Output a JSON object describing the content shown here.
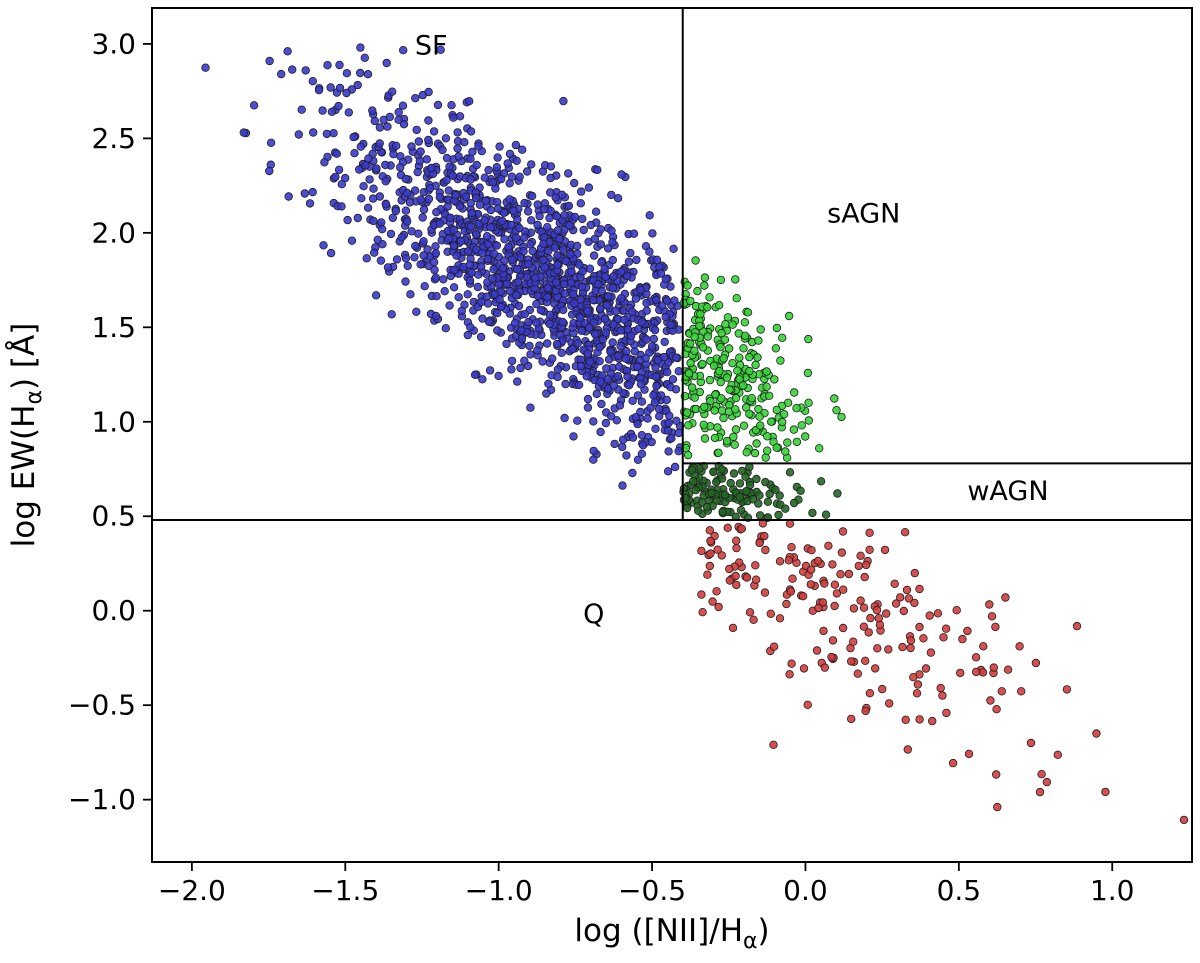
{
  "page": {
    "background": "#ffffff"
  },
  "chart_data": {
    "type": "scatter",
    "title": "",
    "description": "WHAN diagnostic diagram: equivalent width of H-alpha vs [NII]/H-alpha line ratio, with galaxies classified as SF, sAGN, wAGN and Q",
    "xlabel_parts": [
      [
        "t",
        "log ([NII]/H"
      ],
      [
        "sub",
        "α"
      ],
      [
        "t",
        ")"
      ]
    ],
    "ylabel_parts": [
      [
        "t",
        "log EW(H"
      ],
      [
        "sub",
        "α"
      ],
      [
        "t",
        ") [Å]"
      ]
    ],
    "xlim": [
      -2.13,
      1.26
    ],
    "ylim": [
      -1.33,
      3.19
    ],
    "grid": false,
    "x_ticks": {
      "values": [
        -2.0,
        -1.5,
        -1.0,
        -0.5,
        0.0,
        0.5,
        1.0
      ],
      "labels": [
        "−2.0",
        "−1.5",
        "−1.0",
        "−0.5",
        "0.0",
        "0.5",
        "1.0"
      ]
    },
    "y_ticks": {
      "values": [
        -1.0,
        -0.5,
        0.0,
        0.5,
        1.0,
        1.5,
        2.0,
        2.5,
        3.0
      ],
      "labels": [
        "−1.0",
        "−0.5",
        "0.0",
        "0.5",
        "1.0",
        "1.5",
        "2.0",
        "2.5",
        "3.0"
      ]
    },
    "boundaries": {
      "nii_cut": -0.4,
      "ew_sagn_cut": 0.78,
      "ew_quiescent_cut": 0.48,
      "line_color": "#000000",
      "line_width": 2
    },
    "region_labels": [
      {
        "text": "SF",
        "x": -1.22,
        "y": 2.99
      },
      {
        "text": "sAGN",
        "x": 0.19,
        "y": 2.1
      },
      {
        "text": "wAGN",
        "x": 0.66,
        "y": 0.63
      },
      {
        "text": "Q",
        "x": -0.69,
        "y": -0.02
      }
    ],
    "style": {
      "marker_radius": 3.8,
      "marker_edge_color": "#202020",
      "marker_edge_width": 0.8,
      "marker_fill_opacity": 0.9,
      "frame_color": "#000000",
      "tick_font_size": 28,
      "axis_label_font_size": 31,
      "region_label_font_size": 27
    },
    "series": [
      {
        "name": "SF",
        "color": "#3a3ace",
        "count": 1500,
        "seed": 11,
        "x": {
          "type": "normal",
          "mean": -0.8,
          "sigma": 0.38,
          "min": -2.05,
          "max": -0.405
        },
        "ridge": {
          "a": 0.85,
          "b": -1.05
        },
        "y_sigma": 0.28,
        "y_min": 0.58,
        "y_max": 3.02
      },
      {
        "name": "sAGN",
        "color": "#35d435",
        "count": 270,
        "seed": 23,
        "x": {
          "type": "halfnormal",
          "origin": -0.4,
          "sigma": 0.22,
          "min": -0.4,
          "max": 0.92
        },
        "ridge": {
          "a": 0.91,
          "b": -1.1
        },
        "y_sigma": 0.27,
        "y_min": 0.8,
        "y_max": 1.9
      },
      {
        "name": "wAGN",
        "color": "#226622",
        "count": 130,
        "seed": 37,
        "x": {
          "type": "halfnormal",
          "origin": -0.4,
          "sigma": 0.2,
          "min": -0.4,
          "max": 0.5
        },
        "ridge": {
          "a": 0.63,
          "b": 0.0
        },
        "y_sigma": 0.1,
        "y_min": 0.49,
        "y_max": 0.77
      },
      {
        "name": "Q",
        "color": "#d43c3c",
        "count": 210,
        "seed": 51,
        "x": {
          "type": "halfnormal",
          "origin": -0.35,
          "sigma": 0.55,
          "min": -0.35,
          "max": 1.28
        },
        "ridge": {
          "a": 0.16,
          "b": -0.95
        },
        "y_sigma": 0.27,
        "y_min": -1.31,
        "y_max": 0.465
      }
    ]
  }
}
